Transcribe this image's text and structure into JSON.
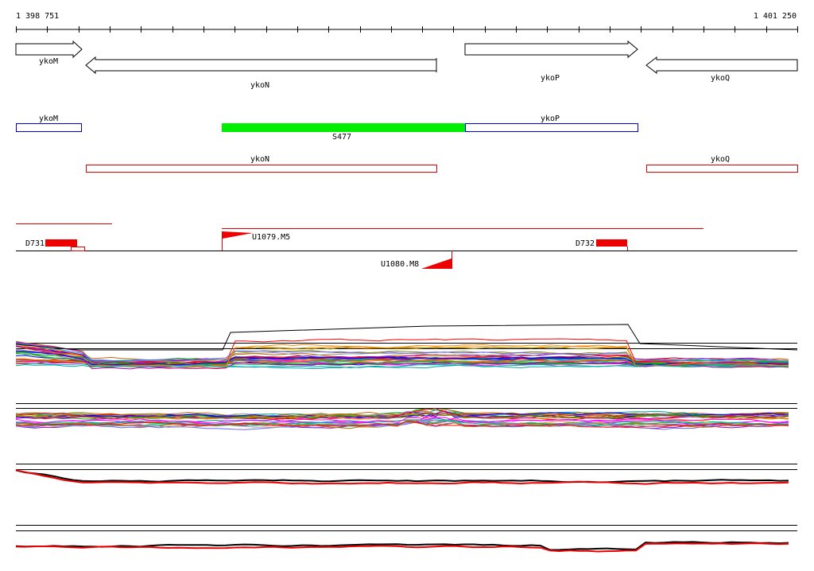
{
  "ruler": {
    "start_label": "1 398 751",
    "end_label": "1 401 250"
  },
  "genes": [
    "ykoM",
    "ykoN",
    "ykoP",
    "ykoQ"
  ],
  "operons": {
    "top_row": [
      "ykoM",
      "ykoP"
    ],
    "segment": "S477",
    "bottom_row": [
      "ykoN",
      "ykoQ"
    ]
  },
  "features": [
    "D731",
    "U1079.M5",
    "D732",
    "U1080.M8"
  ]
}
